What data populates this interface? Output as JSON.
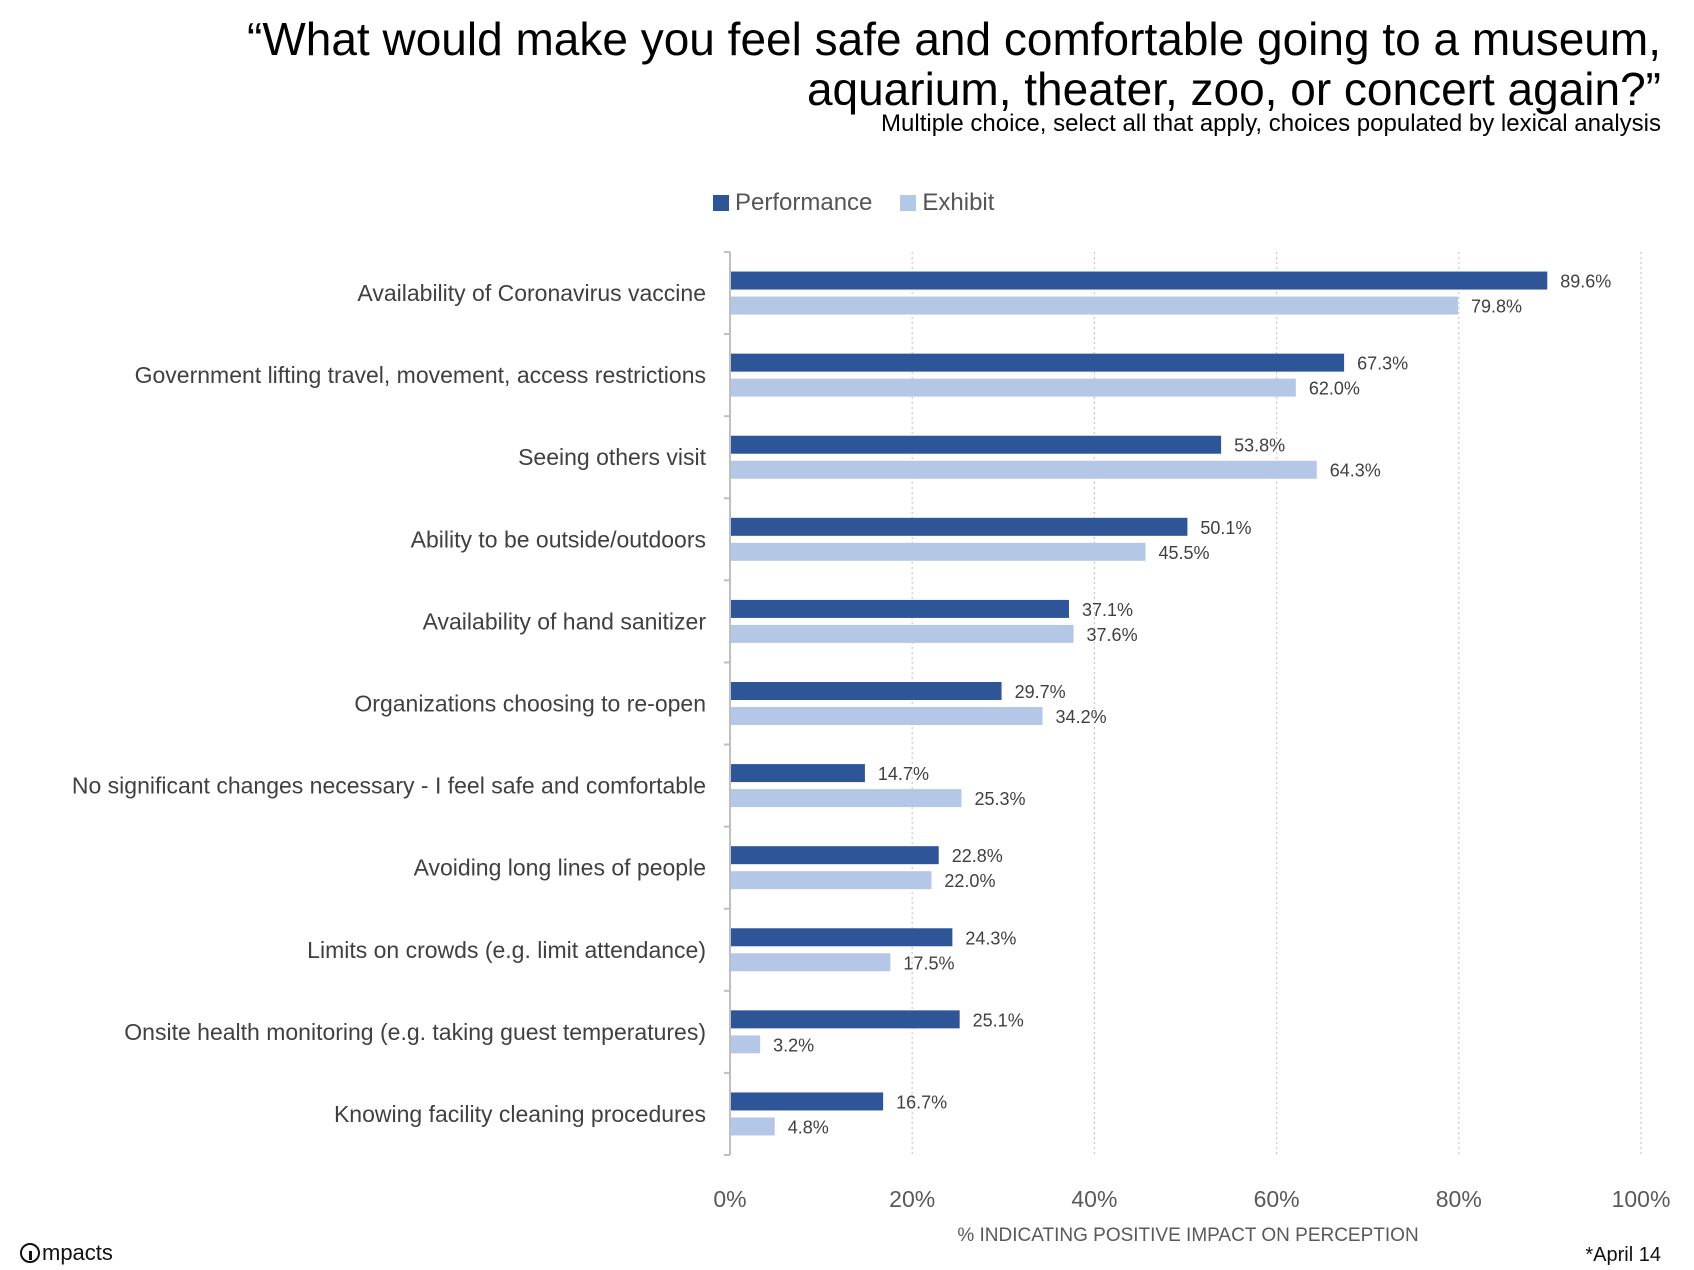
{
  "header": {
    "title": "“What would make you feel safe and comfortable going to a museum,\naquarium, theater, zoo, or concert again?”",
    "subtitle": "Multiple choice, select all that apply, choices populated by lexical analysis"
  },
  "footer": {
    "logo_text": "mpacts",
    "footnote": "*April 14"
  },
  "colors": {
    "performance": "#2e5597",
    "exhibit": "#b4c7e7",
    "axis": "#bfbfbf",
    "grid": "#c8c8c8"
  },
  "chart_data": {
    "type": "bar",
    "orientation": "horizontal",
    "title": "“What would make you feel safe and comfortable going to a museum, aquarium, theater, zoo, or concert again?”",
    "subtitle": "Multiple choice, select all that apply, choices populated by lexical analysis",
    "xlabel": "% INDICATING POSITIVE IMPACT ON PERCEPTION",
    "ylabel": "",
    "xlim": [
      0,
      100
    ],
    "xticks": [
      "0%",
      "20%",
      "40%",
      "60%",
      "80%",
      "100%"
    ],
    "grid": "vertical dotted",
    "legend_position": "top",
    "categories": [
      "Availability of Coronavirus vaccine",
      "Government lifting travel, movement, access restrictions",
      "Seeing others visit",
      "Ability to be outside/outdoors",
      "Availability of hand sanitizer",
      "Organizations choosing to re-open",
      "No significant changes necessary - I feel safe and comfortable",
      "Avoiding long lines of people",
      "Limits on crowds (e.g. limit attendance)",
      "Onsite health monitoring (e.g. taking guest temperatures)",
      "Knowing facility cleaning procedures"
    ],
    "series": [
      {
        "name": "Performance",
        "values": [
          89.6,
          67.3,
          53.8,
          50.1,
          37.1,
          29.7,
          14.7,
          22.8,
          24.3,
          25.1,
          16.7
        ],
        "labels": [
          "89.6%",
          "67.3%",
          "53.8%",
          "50.1%",
          "37.1%",
          "29.7%",
          "14.7%",
          "22.8%",
          "24.3%",
          "25.1%",
          "16.7%"
        ]
      },
      {
        "name": "Exhibit",
        "values": [
          79.8,
          62.0,
          64.3,
          45.5,
          37.6,
          34.2,
          25.3,
          22.0,
          17.5,
          3.2,
          4.8
        ],
        "labels": [
          "79.8%",
          "62.0%",
          "64.3%",
          "45.5%",
          "37.6%",
          "34.2%",
          "25.3%",
          "22.0%",
          "17.5%",
          "3.2%",
          "4.8%"
        ]
      }
    ]
  }
}
